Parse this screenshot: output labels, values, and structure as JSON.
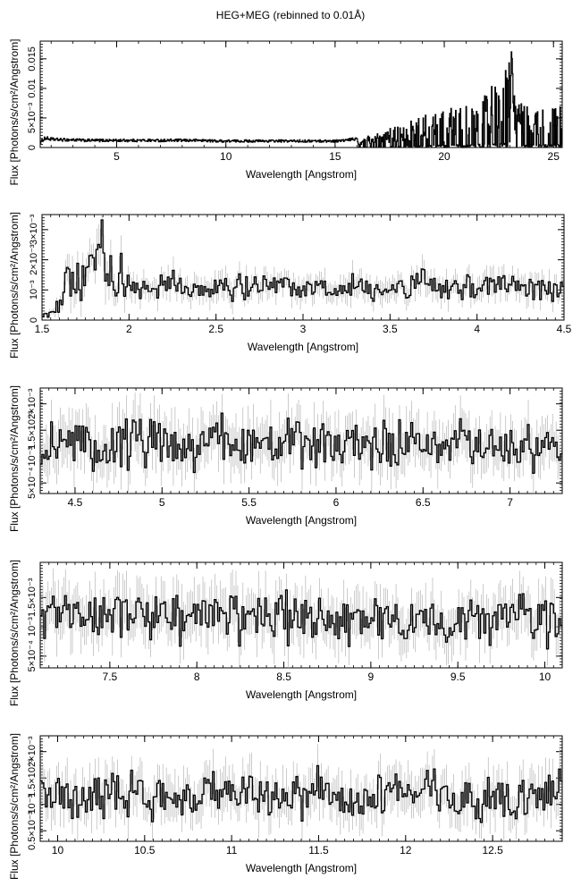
{
  "figure": {
    "title": "HEG+MEG (rebinned to 0.01Å)"
  },
  "chart_data": [
    {
      "type": "line",
      "xlabel": "Wavelength [Angstrom]",
      "ylabel": "Flux [Photons/s/cm²/Angstrom]",
      "xlim": [
        1.5,
        25.4
      ],
      "ylim": [
        0,
        0.018
      ],
      "xticks": [
        5,
        10,
        15,
        20,
        25
      ],
      "yticks": [
        {
          "v": 0,
          "label": "0"
        },
        {
          "v": 0.005,
          "label": "5×10⁻³"
        },
        {
          "v": 0.01,
          "label": "0.01"
        },
        {
          "v": 0.015,
          "label": "0.015"
        }
      ],
      "series": [
        {
          "x": [
            1.5,
            1.7,
            2,
            2.5,
            3,
            3.5,
            4,
            4.5,
            5,
            5.5,
            6,
            6.5,
            7,
            7.5,
            8,
            8.5,
            9,
            9.5,
            10,
            10.5,
            11,
            11.5,
            12,
            12.5,
            13,
            13.5,
            14,
            14.5,
            15,
            15.5,
            16,
            16.5,
            17,
            17.5,
            18,
            18.5,
            19,
            19.5,
            20,
            20.5,
            21,
            21.5,
            22,
            22.3,
            22.6,
            22.8,
            22.9,
            23.0,
            23.2,
            23.5,
            24,
            24.5,
            25,
            25.4
          ],
          "y": [
            0.0008,
            0.0016,
            0.0014,
            0.0013,
            0.0013,
            0.0012,
            0.0012,
            0.0012,
            0.0012,
            0.0012,
            0.0012,
            0.0012,
            0.0012,
            0.0012,
            0.0012,
            0.0012,
            0.0012,
            0.0011,
            0.0011,
            0.0011,
            0.0011,
            0.0011,
            0.0011,
            0.0011,
            0.0011,
            0.0011,
            0.0011,
            0.0011,
            0.0011,
            0.0012,
            0.0015,
            0.0018,
            0.0022,
            0.0027,
            0.0033,
            0.0038,
            0.0044,
            0.005,
            0.0055,
            0.006,
            0.0065,
            0.007,
            0.0075,
            0.0095,
            0.0085,
            0.0105,
            0.0165,
            0.0178,
            0.0085,
            0.0062,
            0.0066,
            0.0058,
            0.0072,
            0.0078
          ]
        }
      ]
    },
    {
      "type": "line",
      "xlabel": "Wavelength [Angstrom]",
      "ylabel": "Flux [Photons/s/cm²/Angstrom]",
      "xlim": [
        1.5,
        4.5
      ],
      "ylim": [
        0,
        0.0035
      ],
      "xticks": [
        1.5,
        2,
        2.5,
        3,
        3.5,
        4,
        4.5
      ],
      "yticks": [
        {
          "v": 0,
          "label": "0"
        },
        {
          "v": 0.001,
          "label": "10⁻³"
        },
        {
          "v": 0.002,
          "label": "2×10⁻³"
        },
        {
          "v": 0.003,
          "label": "3×10⁻³"
        }
      ],
      "series": [
        {
          "x": [
            1.5,
            1.55,
            1.6,
            1.65,
            1.7,
            1.75,
            1.8,
            1.85,
            1.9,
            1.95,
            2.0,
            2.1,
            2.2,
            2.3,
            2.4,
            2.5,
            2.6,
            2.7,
            2.8,
            2.9,
            3.0,
            3.1,
            3.2,
            3.3,
            3.4,
            3.5,
            3.6,
            3.7,
            3.8,
            3.9,
            4.0,
            4.1,
            4.2,
            4.3,
            4.4,
            4.5
          ],
          "y": [
            0.0002,
            0.0003,
            0.0005,
            0.0013,
            0.0016,
            0.0011,
            0.0017,
            0.0023,
            0.0014,
            0.0015,
            0.0011,
            0.001,
            0.0012,
            0.0011,
            0.001,
            0.0012,
            0.0011,
            0.001,
            0.0012,
            0.0011,
            0.001,
            0.0011,
            0.001,
            0.0011,
            0.001,
            0.0011,
            0.001,
            0.0012,
            0.001,
            0.0011,
            0.001,
            0.0012,
            0.001,
            0.0011,
            0.001,
            0.0011
          ]
        }
      ]
    },
    {
      "type": "line",
      "xlabel": "Wavelength [Angstrom]",
      "ylabel": "Flux [Photons/s/cm²/Angstrom]",
      "xlim": [
        4.3,
        7.3
      ],
      "ylim": [
        0.0003,
        0.0023
      ],
      "xticks": [
        4.5,
        5,
        5.5,
        6,
        6.5,
        7
      ],
      "yticks": [
        {
          "v": 0.0005,
          "label": "5×10⁻⁴"
        },
        {
          "v": 0.001,
          "label": "10⁻³"
        },
        {
          "v": 0.0015,
          "label": "1.5×10⁻³"
        },
        {
          "v": 0.002,
          "label": "2×10⁻³"
        }
      ],
      "series": [
        {
          "x": [
            4.3,
            4.5,
            4.7,
            4.9,
            5.1,
            5.3,
            5.5,
            5.7,
            5.9,
            6.1,
            6.3,
            6.5,
            6.7,
            6.9,
            7.1,
            7.3
          ],
          "y": [
            0.0012,
            0.0013,
            0.0012,
            0.0014,
            0.0012,
            0.0013,
            0.0012,
            0.0013,
            0.0012,
            0.0012,
            0.0012,
            0.0012,
            0.0012,
            0.0012,
            0.0012,
            0.0012
          ]
        }
      ]
    },
    {
      "type": "line",
      "xlabel": "Wavelength [Angstrom]",
      "ylabel": "Flux [Photons/s/cm²/Angstrom]",
      "xlim": [
        7.1,
        10.1
      ],
      "ylim": [
        0.0003,
        0.0021
      ],
      "xticks": [
        7.5,
        8,
        8.5,
        9,
        9.5,
        10
      ],
      "yticks": [
        {
          "v": 0.0005,
          "label": "5×10⁻⁴"
        },
        {
          "v": 0.001,
          "label": "10⁻³"
        },
        {
          "v": 0.0015,
          "label": "1.5×10⁻³"
        }
      ],
      "series": [
        {
          "x": [
            7.1,
            7.3,
            7.5,
            7.7,
            7.9,
            8.1,
            8.3,
            8.5,
            8.7,
            8.9,
            9.1,
            9.3,
            9.5,
            9.7,
            9.9,
            10.1
          ],
          "y": [
            0.0012,
            0.0012,
            0.0012,
            0.0012,
            0.0012,
            0.0012,
            0.0012,
            0.0012,
            0.0011,
            0.0011,
            0.0011,
            0.0011,
            0.0011,
            0.0011,
            0.0011,
            0.0011
          ]
        }
      ]
    },
    {
      "type": "line",
      "xlabel": "Wavelength [Angstrom]",
      "ylabel": "Flux [Photons/s/cm²/Angstrom]",
      "xlim": [
        9.9,
        12.9
      ],
      "ylim": [
        0.0003,
        0.0023
      ],
      "xticks": [
        10,
        10.5,
        11,
        11.5,
        12,
        12.5
      ],
      "yticks": [
        {
          "v": 0.0005,
          "label": "0.5×10⁻³"
        },
        {
          "v": 0.001,
          "label": "10⁻³"
        },
        {
          "v": 0.0015,
          "label": "1.5×10⁻³"
        },
        {
          "v": 0.002,
          "label": "2×10⁻³"
        }
      ],
      "series": [
        {
          "x": [
            9.9,
            10.1,
            10.3,
            10.5,
            10.7,
            10.9,
            11.1,
            11.3,
            11.5,
            11.7,
            11.9,
            12.1,
            12.3,
            12.5,
            12.7,
            12.9
          ],
          "y": [
            0.0012,
            0.0012,
            0.0012,
            0.0012,
            0.0011,
            0.0012,
            0.0012,
            0.0011,
            0.0012,
            0.0011,
            0.0011,
            0.0012,
            0.0011,
            0.0012,
            0.0011,
            0.0012
          ]
        }
      ]
    }
  ]
}
